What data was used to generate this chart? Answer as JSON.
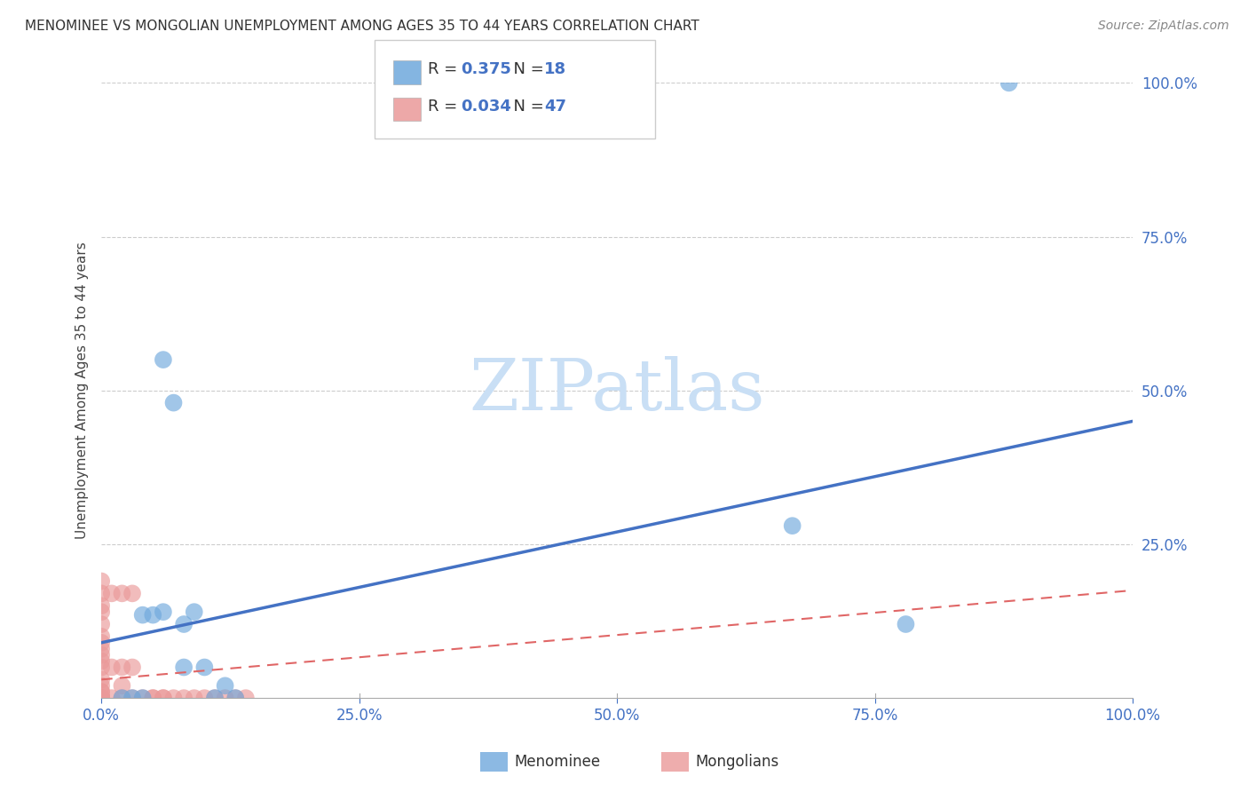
{
  "title": "MENOMINEE VS MONGOLIAN UNEMPLOYMENT AMONG AGES 35 TO 44 YEARS CORRELATION CHART",
  "source": "Source: ZipAtlas.com",
  "ylabel": "Unemployment Among Ages 35 to 44 years",
  "xlim": [
    0,
    1.0
  ],
  "ylim": [
    0,
    1.0
  ],
  "xtick_labels": [
    "0.0%",
    "",
    "25.0%",
    "",
    "50.0%",
    "",
    "75.0%",
    "",
    "100.0%"
  ],
  "xtick_vals": [
    0,
    0.125,
    0.25,
    0.375,
    0.5,
    0.625,
    0.75,
    0.875,
    1.0
  ],
  "ytick_labels": [
    "",
    "25.0%",
    "50.0%",
    "75.0%",
    "100.0%"
  ],
  "ytick_vals": [
    0,
    0.25,
    0.5,
    0.75,
    1.0
  ],
  "menominee_color": "#6fa8dc",
  "mongolian_color": "#ea9999",
  "menominee_R": 0.375,
  "menominee_N": 18,
  "mongolian_R": 0.034,
  "mongolian_N": 47,
  "tick_color": "#4472c4",
  "watermark_color": "#c9dff5",
  "menominee_points_x": [
    0.02,
    0.03,
    0.04,
    0.04,
    0.05,
    0.06,
    0.06,
    0.07,
    0.08,
    0.08,
    0.09,
    0.1,
    0.11,
    0.12,
    0.13,
    0.67,
    0.78,
    0.88
  ],
  "menominee_points_y": [
    0.0,
    0.0,
    0.0,
    0.135,
    0.135,
    0.14,
    0.55,
    0.48,
    0.05,
    0.12,
    0.14,
    0.05,
    0.0,
    0.02,
    0.0,
    0.28,
    0.12,
    1.0
  ],
  "mongolian_points_x": [
    0.0,
    0.0,
    0.0,
    0.0,
    0.0,
    0.0,
    0.0,
    0.0,
    0.0,
    0.0,
    0.0,
    0.0,
    0.0,
    0.0,
    0.0,
    0.0,
    0.0,
    0.0,
    0.0,
    0.0,
    0.0,
    0.0,
    0.0,
    0.0,
    0.01,
    0.01,
    0.01,
    0.02,
    0.02,
    0.02,
    0.02,
    0.03,
    0.03,
    0.03,
    0.04,
    0.05,
    0.05,
    0.06,
    0.06,
    0.07,
    0.08,
    0.09,
    0.1,
    0.11,
    0.12,
    0.13,
    0.14
  ],
  "mongolian_points_y": [
    0.0,
    0.0,
    0.0,
    0.0,
    0.0,
    0.0,
    0.0,
    0.0,
    0.0,
    0.01,
    0.01,
    0.02,
    0.03,
    0.05,
    0.06,
    0.07,
    0.08,
    0.09,
    0.1,
    0.12,
    0.14,
    0.15,
    0.17,
    0.19,
    0.0,
    0.05,
    0.17,
    0.0,
    0.02,
    0.05,
    0.17,
    0.0,
    0.05,
    0.17,
    0.0,
    0.0,
    0.0,
    0.0,
    0.0,
    0.0,
    0.0,
    0.0,
    0.0,
    0.0,
    0.0,
    0.0,
    0.0
  ],
  "menominee_line_color": "#4472c4",
  "menominee_line_intercept": 0.09,
  "menominee_line_end": 0.45,
  "mongolian_line_color": "#e06666",
  "mongolian_line_intercept": 0.03,
  "mongolian_line_end": 0.175,
  "background_color": "#ffffff",
  "grid_color": "#cccccc"
}
